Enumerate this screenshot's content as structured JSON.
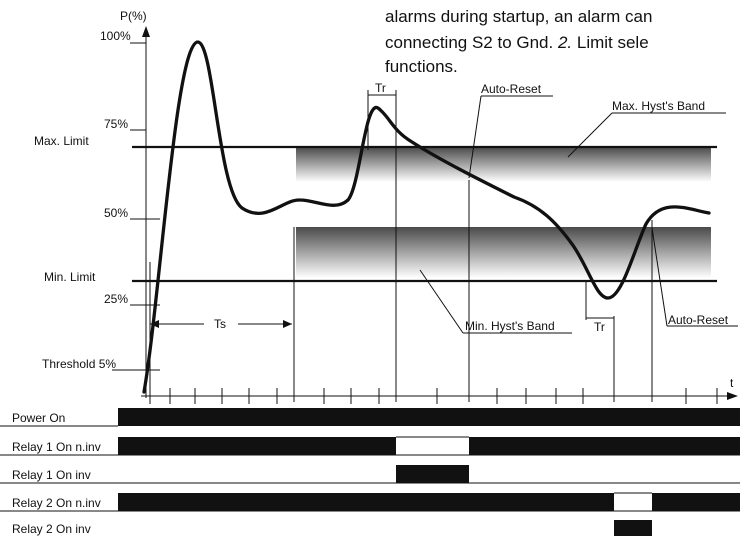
{
  "paragraph": {
    "line1": "alarms during startup, an alarm can",
    "line2_prefix": "connecting S2 to Gnd. ",
    "line2_num": "2.",
    "line2_suffix": " Limit sele",
    "line3": "functions."
  },
  "axes": {
    "y_label": "P(%)",
    "x_label": "t",
    "ticks": {
      "p100": "100%",
      "p75": "75%",
      "p50": "50%",
      "p25": "25%"
    }
  },
  "labels": {
    "max_limit": "Max.  Limit",
    "min_limit": "Min.  Limit",
    "threshold_prefix": "Threshold ",
    "threshold_value": "5%",
    "ts": "Ts",
    "tr": "Tr",
    "auto_reset": "Auto-Reset",
    "max_hyst_band": "Max. Hyst's Band",
    "min_hyst_band": "Min. Hyst's Band"
  },
  "relays": {
    "power_on": "Power  On",
    "relay1_ninv": "Relay 1 On n.inv",
    "relay1_inv": "Relay 1 On inv",
    "relay2_ninv": "Relay 2 On n.inv",
    "relay2_inv": "Relay 2 On inv"
  },
  "colors": {
    "ink": "#111111",
    "band_dark": "#4a4a4a",
    "band_light": "#ffffff"
  }
}
